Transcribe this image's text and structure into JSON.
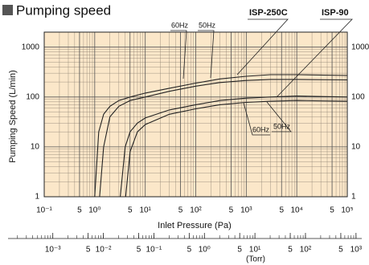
{
  "chart_data": {
    "type": "line",
    "title": "Pumping speed",
    "xlabel": "Inlet Pressure (Pa)",
    "ylabel": "Pumping Speed (L/min)",
    "xscale": "log",
    "yscale": "log",
    "grid": true,
    "minor_grid": true,
    "background": "#fbe7c9",
    "xlim": [
      0.1,
      100000
    ],
    "ylim": [
      1,
      2000
    ],
    "xticks": [
      {
        "value": 0.1,
        "label": "10⁻¹"
      },
      {
        "value": 0.5,
        "label": "5"
      },
      {
        "value": 1,
        "label": "10⁰"
      },
      5,
      {
        "value": 10,
        "label": "10¹"
      },
      {
        "value": 50,
        "label": "5"
      },
      {
        "value": 100,
        "label": "10²"
      },
      {
        "value": 500,
        "label": "5"
      },
      {
        "value": 1000,
        "label": "10³"
      },
      {
        "value": 5000,
        "label": "5"
      },
      {
        "value": 10000,
        "label": "10⁴"
      },
      {
        "value": 50000,
        "label": "5"
      },
      {
        "value": 100000,
        "label": "10⁵"
      }
    ],
    "yticks": [
      1,
      10,
      100,
      1000
    ],
    "x2label": "(Torr)",
    "x2lim": [
      0.00013,
      1300
    ],
    "x2ticks": [
      {
        "value": 0.001,
        "label": "10⁻³"
      },
      {
        "value": 0.005,
        "label": "5"
      },
      {
        "value": 0.01,
        "label": "10⁻²"
      },
      {
        "value": 0.05,
        "label": "5"
      },
      {
        "value": 0.1,
        "label": "10⁻¹"
      },
      {
        "value": 0.5,
        "label": "5"
      },
      {
        "value": 1,
        "label": "10⁰"
      },
      5,
      {
        "value": 10,
        "label": "10¹"
      },
      {
        "value": 50,
        "label": "5"
      },
      {
        "value": 100,
        "label": "10²"
      },
      {
        "value": 500,
        "label": "5"
      },
      {
        "value": 1000,
        "label": "10³"
      }
    ],
    "annotations": [
      "60Hz",
      "50Hz",
      "ISP-250C",
      "ISP-90",
      "60Hz",
      "50Hz"
    ],
    "series": [
      {
        "color": "#222222",
        "x": [
          1,
          1.2,
          1.5,
          2,
          3,
          5,
          10,
          30,
          100,
          300,
          1000,
          3000,
          10000,
          100000
        ],
        "values": [
          1,
          20,
          45,
          65,
          85,
          100,
          120,
          150,
          190,
          230,
          260,
          280,
          280,
          270
        ]
      },
      {
        "color": "#222222",
        "x": [
          1.25,
          1.5,
          2,
          3,
          5,
          10,
          30,
          100,
          300,
          1000,
          3000,
          10000,
          100000
        ],
        "values": [
          1,
          10,
          40,
          65,
          85,
          100,
          130,
          165,
          195,
          215,
          225,
          225,
          220
        ]
      },
      {
        "color": "#222222",
        "x": [
          3.2,
          4,
          5,
          7,
          10,
          30,
          100,
          300,
          1000,
          3000,
          10000,
          100000
        ],
        "values": [
          1,
          10,
          20,
          30,
          38,
          55,
          70,
          85,
          95,
          100,
          105,
          100
        ]
      },
      {
        "color": "#222222",
        "x": [
          4.1,
          5,
          7,
          10,
          30,
          100,
          300,
          1000,
          3000,
          10000,
          100000
        ],
        "values": [
          1,
          8,
          20,
          28,
          45,
          58,
          70,
          78,
          82,
          85,
          82
        ]
      }
    ]
  }
}
